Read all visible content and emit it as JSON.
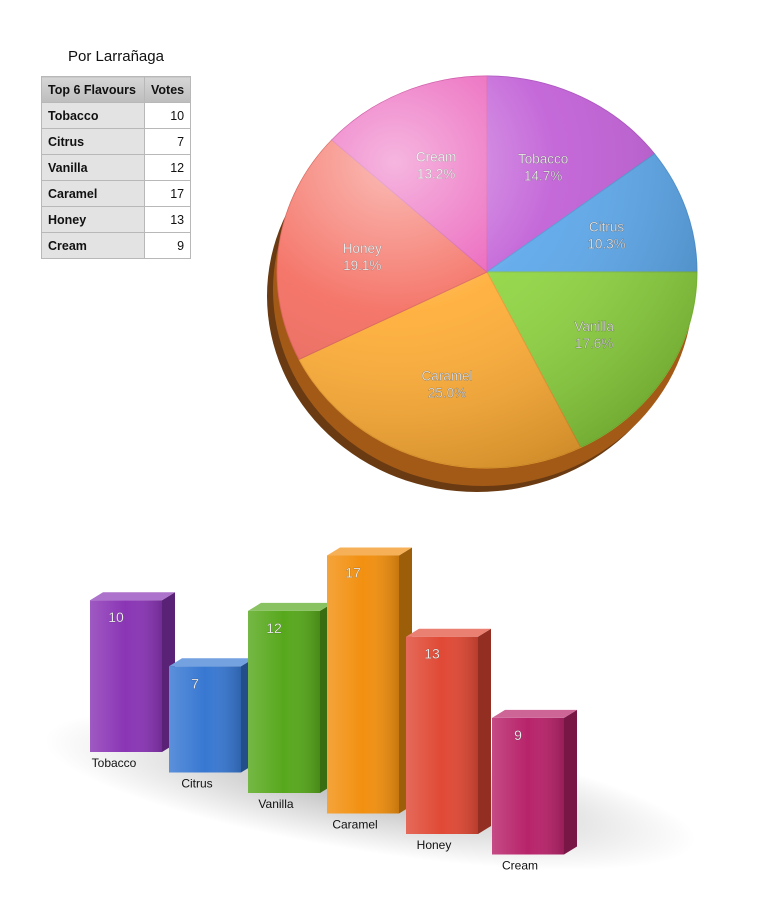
{
  "table": {
    "title": "Por Larrañaga",
    "headers": [
      "Top 6 Flavours",
      "Votes"
    ],
    "rows": [
      {
        "label": "Tobacco",
        "value": "10"
      },
      {
        "label": "Citrus",
        "value": "7"
      },
      {
        "label": "Vanilla",
        "value": "12"
      },
      {
        "label": "Caramel",
        "value": "17"
      },
      {
        "label": "Honey",
        "value": "13"
      },
      {
        "label": "Cream",
        "value": "9"
      }
    ]
  },
  "chart_data": [
    {
      "type": "pie",
      "categories": [
        "Tobacco",
        "Citrus",
        "Vanilla",
        "Caramel",
        "Honey",
        "Cream"
      ],
      "values": [
        10,
        7,
        12,
        17,
        13,
        9
      ],
      "percent_labels": [
        "14.7%",
        "10.3%",
        "17.6%",
        "25.0%",
        "19.1%",
        "13.2%"
      ],
      "colors": [
        "#c05cd6",
        "#5aa6ea",
        "#8ed43f",
        "#ffac33",
        "#f46b5e",
        "#ea5cb9"
      ],
      "style": "3d-tilted",
      "legend": "none"
    },
    {
      "type": "bar",
      "categories": [
        "Tobacco",
        "Citrus",
        "Vanilla",
        "Caramel",
        "Honey",
        "Cream"
      ],
      "values": [
        10,
        7,
        12,
        17,
        13,
        9
      ],
      "colors": [
        "#8a35b5",
        "#3878d2",
        "#57a81c",
        "#f29010",
        "#e04935",
        "#b8236a"
      ],
      "style": "3d-perspective",
      "data_labels": true,
      "legend": "none"
    }
  ]
}
